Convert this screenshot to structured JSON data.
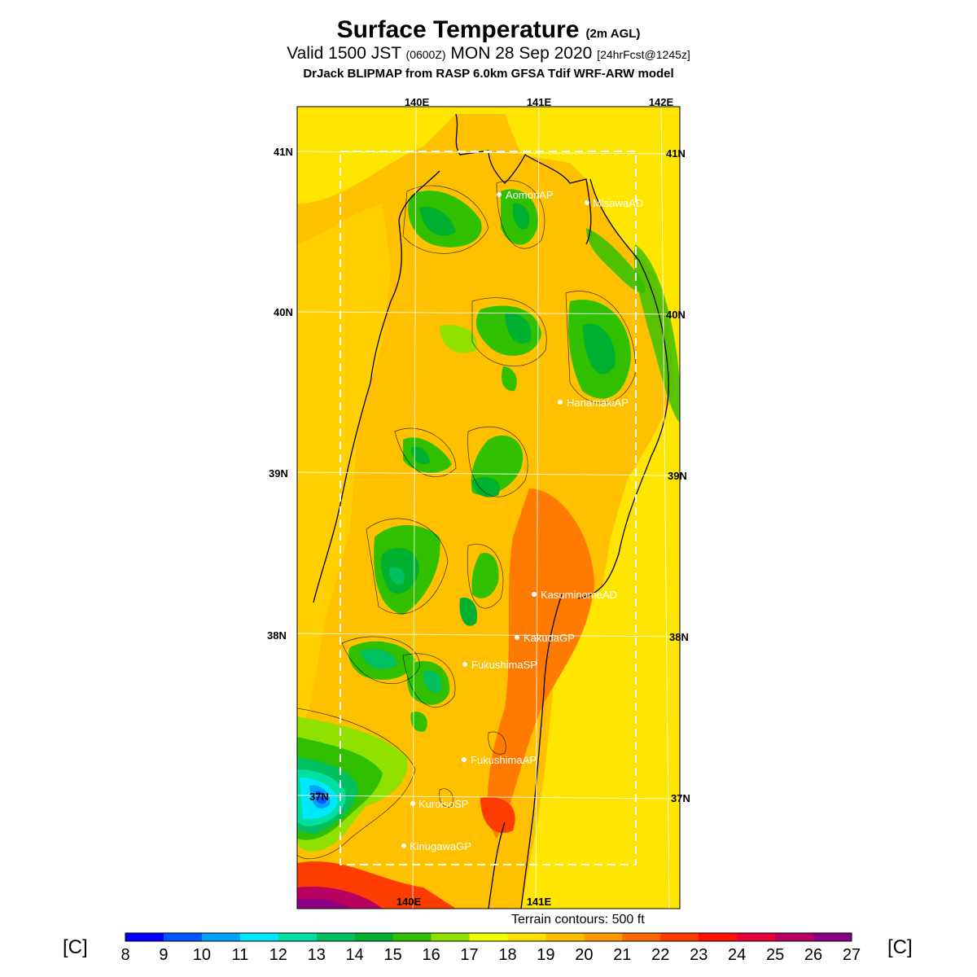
{
  "title": {
    "main": "Surface Temperature",
    "main_suffix": "(2m AGL)",
    "valid_prefix": "Valid 1500 JST",
    "valid_z": "(0600Z)",
    "valid_date": "MON 28 Sep 2020",
    "forecast": "[24hrFcst@1245z]",
    "model": "DrJack BLIPMAP from RASP 6.0km GFSA Tdif WRF-ARW model"
  },
  "axes": {
    "lon_top": [
      "140E",
      "141E",
      "142E"
    ],
    "lon_bottom": [
      "140E",
      "141E"
    ],
    "lat_left": [
      "41N",
      "40N",
      "39N",
      "38N",
      "37N"
    ],
    "lat_right": [
      "41N",
      "40N",
      "39N",
      "38N",
      "37N"
    ]
  },
  "stations": [
    {
      "name": "AomoriAP"
    },
    {
      "name": "MisawaAD"
    },
    {
      "name": "HanamakiAP"
    },
    {
      "name": "KasuminomeAD"
    },
    {
      "name": "KakudaGP"
    },
    {
      "name": "FukushimaSP"
    },
    {
      "name": "FukushimaAP"
    },
    {
      "name": "KuroisoSP"
    },
    {
      "name": "KinugawaGP"
    }
  ],
  "terrain_note": "Terrain contours: 500 ft",
  "colorbar": {
    "unit_left": "[C]",
    "unit_right": "[C]",
    "ticks": [
      "8",
      "9",
      "10",
      "11",
      "12",
      "13",
      "14",
      "15",
      "16",
      "17",
      "18",
      "19",
      "20",
      "21",
      "22",
      "23",
      "24",
      "25",
      "26",
      "27"
    ],
    "colors": [
      "#0000ff",
      "#0055ff",
      "#00a0ff",
      "#00e8ff",
      "#00e0a0",
      "#00c060",
      "#00b030",
      "#30c000",
      "#90e000",
      "#f0ff00",
      "#ffe000",
      "#ffc000",
      "#ff9800",
      "#ff6800",
      "#ff3c00",
      "#ff1000",
      "#e8003c",
      "#b80060",
      "#8c0080"
    ]
  },
  "legend_colors": {
    "background_land": "#ffc000",
    "sea": "#ffe000",
    "warm": "#ff6800",
    "cold": "#00b030"
  }
}
